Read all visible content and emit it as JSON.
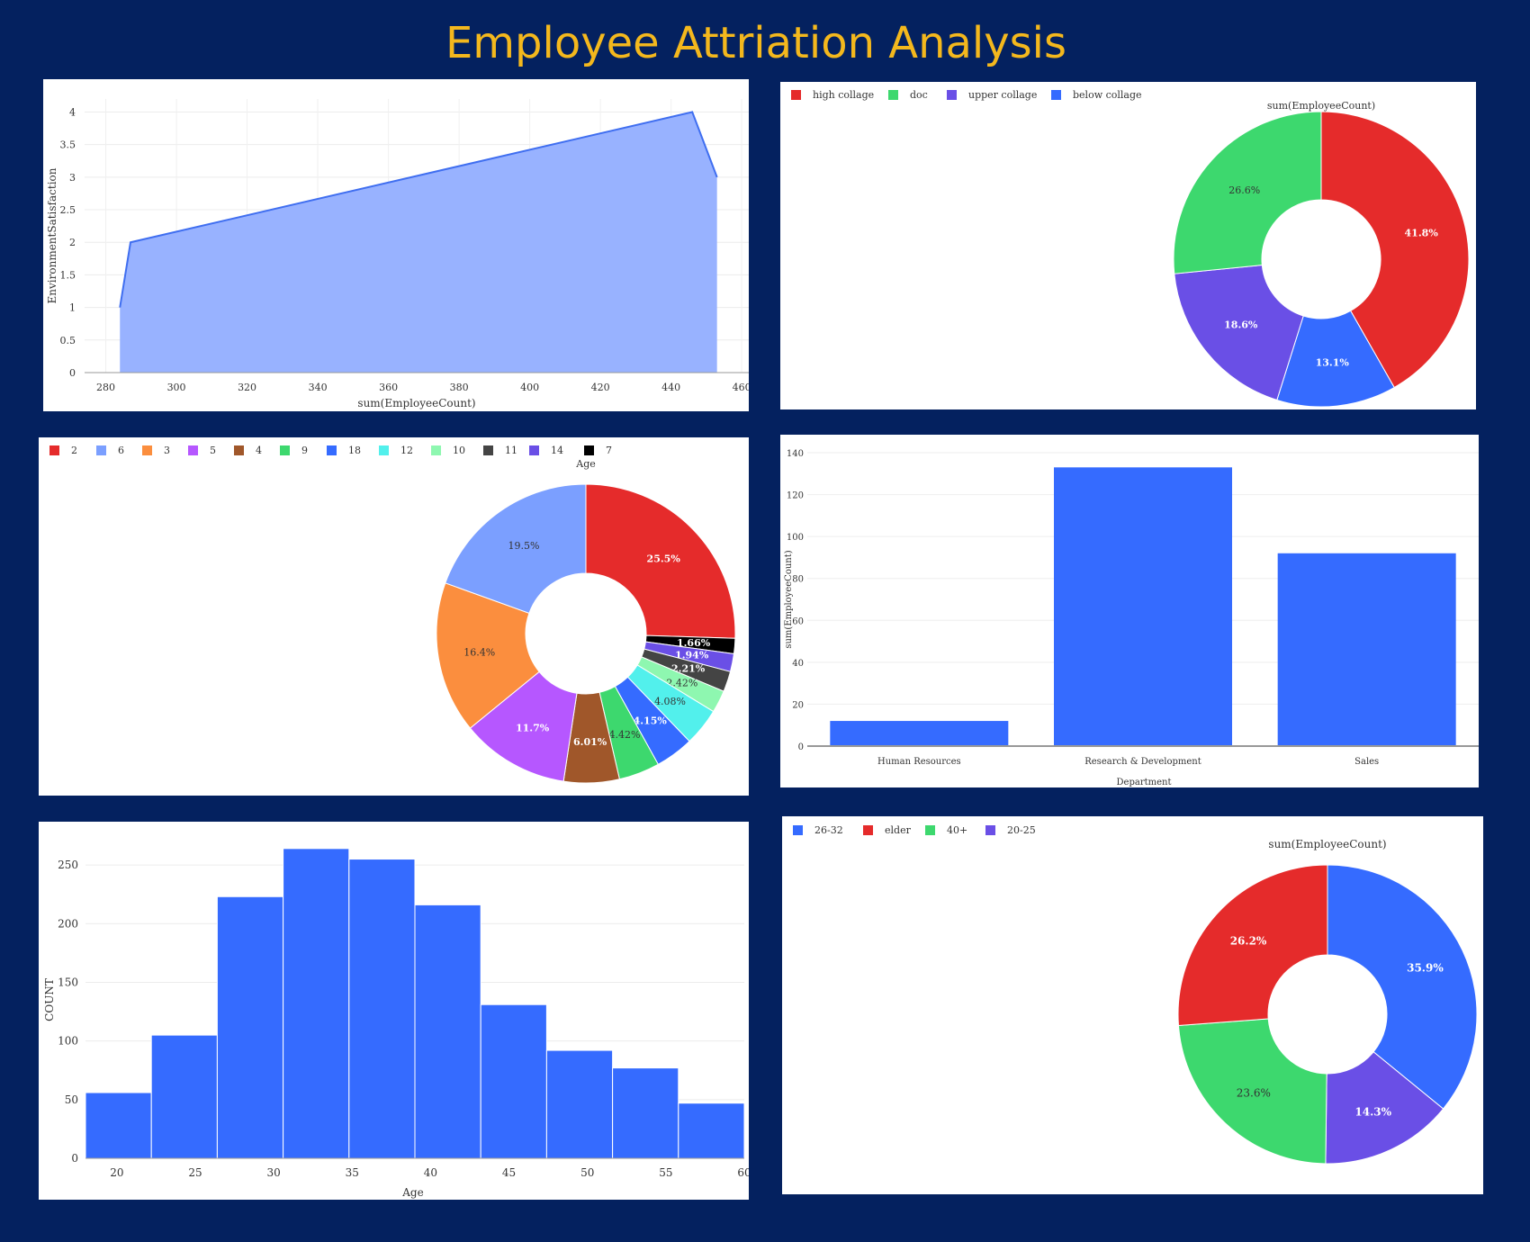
{
  "page": {
    "title": "Employee Attriation Analysis"
  },
  "colors": {
    "background": "#04215f",
    "title": "#f4b81d",
    "bar": "#356bff",
    "area_fill": "#98b2ff",
    "area_line": "#3f6ef0"
  },
  "chart_data": [
    {
      "id": "env_satisfaction_area",
      "type": "area",
      "xlabel": "sum(EmployeeCount)",
      "ylabel": "EnvironmentSatisfaction",
      "x_ticks": [
        "280",
        "300",
        "320",
        "340",
        "360",
        "380",
        "400",
        "420",
        "440",
        "460"
      ],
      "y_ticks": [
        "0",
        "0.5",
        "1",
        "1.5",
        "2",
        "2.5",
        "3",
        "3.5",
        "4"
      ],
      "xlim": [
        274,
        462
      ],
      "ylim": [
        0,
        4.2
      ],
      "grid": true,
      "points": [
        {
          "x": 284,
          "y": 1
        },
        {
          "x": 287,
          "y": 2
        },
        {
          "x": 446,
          "y": 4
        },
        {
          "x": 453,
          "y": 3
        }
      ]
    },
    {
      "id": "education_donut",
      "type": "pie",
      "title": "sum(EmployeeCount)",
      "legend": {
        "position": "top-left"
      },
      "slices": [
        {
          "label": "high collage",
          "value": 41.8,
          "text": "41.8%",
          "color": "#e52b2b"
        },
        {
          "label": "below collage",
          "value": 13.1,
          "text": "13.1%",
          "color": "#356bff"
        },
        {
          "label": "upper collage",
          "value": 18.6,
          "text": "18.6%",
          "color": "#6a4fe6"
        },
        {
          "label": "doc",
          "value": 26.6,
          "text": "26.6%",
          "color": "#3dd86e"
        }
      ],
      "legend_order": [
        "high collage",
        "doc",
        "upper collage",
        "below collage"
      ]
    },
    {
      "id": "age_donut",
      "type": "pie",
      "title": "Age",
      "legend": {
        "position": "top-left"
      },
      "slices": [
        {
          "label": "2",
          "value": 25.5,
          "text": "25.5%",
          "color": "#e52b2b"
        },
        {
          "label": "7",
          "value": 1.66,
          "text": "1.66%",
          "color": "#000000"
        },
        {
          "label": "14",
          "value": 1.94,
          "text": "1.94%",
          "color": "#6a4fe6"
        },
        {
          "label": "11",
          "value": 2.21,
          "text": "2.21%",
          "color": "#444444"
        },
        {
          "label": "10",
          "value": 2.42,
          "text": "2.42%",
          "color": "#8ef7b0"
        },
        {
          "label": "12",
          "value": 4.08,
          "text": "4.08%",
          "color": "#52f0ec"
        },
        {
          "label": "18",
          "value": 4.15,
          "text": "4.15%",
          "color": "#356bff"
        },
        {
          "label": "9",
          "value": 4.42,
          "text": "4.42%",
          "color": "#3dd86e"
        },
        {
          "label": "4",
          "value": 6.01,
          "text": "6.01%",
          "color": "#a0572a"
        },
        {
          "label": "5",
          "value": 11.7,
          "text": "11.7%",
          "color": "#b657ff"
        },
        {
          "label": "3",
          "value": 16.4,
          "text": "16.4%",
          "color": "#fb8e3e"
        },
        {
          "label": "6",
          "value": 19.5,
          "text": "19.5%",
          "color": "#7b9fff"
        }
      ],
      "legend_order": [
        "2",
        "6",
        "3",
        "5",
        "4",
        "9",
        "18",
        "12",
        "10",
        "11",
        "14",
        "7"
      ]
    },
    {
      "id": "department_bar",
      "type": "bar",
      "xlabel": "Department",
      "ylabel": "sum(EmployeeCount)",
      "categories": [
        "Human Resources",
        "Research & Development",
        "Sales"
      ],
      "values": [
        12,
        133,
        92
      ],
      "y_ticks": [
        "0",
        "20",
        "40",
        "60",
        "80",
        "100",
        "120",
        "140"
      ],
      "ylim": [
        0,
        140
      ]
    },
    {
      "id": "age_histogram",
      "type": "bar",
      "xlabel": "Age",
      "ylabel": "COUNT",
      "bins": [
        {
          "start": 18,
          "end": 22.2,
          "count": 56
        },
        {
          "start": 22.2,
          "end": 26.4,
          "count": 105
        },
        {
          "start": 26.4,
          "end": 30.6,
          "count": 223
        },
        {
          "start": 30.6,
          "end": 34.8,
          "count": 264
        },
        {
          "start": 34.8,
          "end": 39.0,
          "count": 255
        },
        {
          "start": 39.0,
          "end": 43.2,
          "count": 216
        },
        {
          "start": 43.2,
          "end": 47.4,
          "count": 131
        },
        {
          "start": 47.4,
          "end": 51.6,
          "count": 92
        },
        {
          "start": 51.6,
          "end": 55.8,
          "count": 77
        },
        {
          "start": 55.8,
          "end": 60.0,
          "count": 47
        }
      ],
      "x_ticks": [
        "20",
        "25",
        "30",
        "35",
        "40",
        "45",
        "50",
        "55",
        "60"
      ],
      "y_ticks": [
        "0",
        "50",
        "100",
        "150",
        "200",
        "250"
      ],
      "xlim": [
        18,
        60
      ],
      "ylim": [
        0,
        270
      ]
    },
    {
      "id": "age_group_donut",
      "type": "pie",
      "title": "sum(EmployeeCount)",
      "legend": {
        "position": "top-left"
      },
      "slices": [
        {
          "label": "26-32",
          "value": 35.9,
          "text": "35.9%",
          "color": "#356bff"
        },
        {
          "label": "20-25",
          "value": 14.3,
          "text": "14.3%",
          "color": "#6a4fe6"
        },
        {
          "label": "40+",
          "value": 23.6,
          "text": "23.6%",
          "color": "#3dd86e"
        },
        {
          "label": "elder",
          "value": 26.2,
          "text": "26.2%",
          "color": "#e52b2b"
        }
      ],
      "legend_order": [
        "26-32",
        "elder",
        "40+",
        "20-25"
      ]
    }
  ]
}
